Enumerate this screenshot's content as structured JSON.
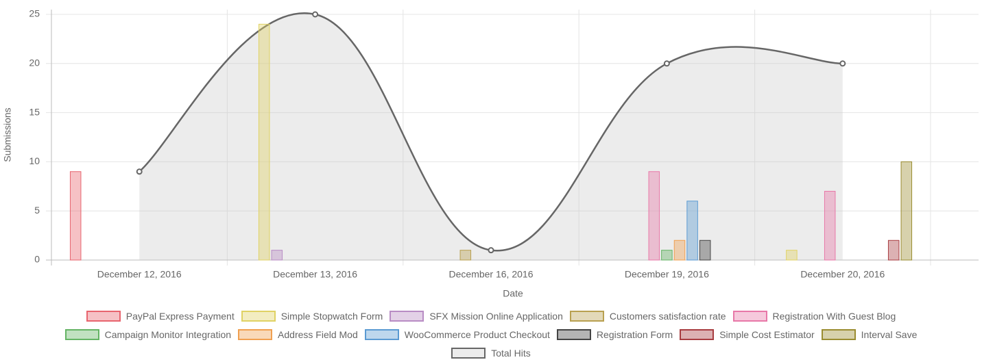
{
  "chart_data": {
    "type": "bar",
    "x_label": "Date",
    "y_label": "Submissions",
    "categories": [
      "December 12, 2016",
      "December 13, 2016",
      "December 16, 2016",
      "December 19, 2016",
      "December 20, 2016"
    ],
    "ylim": [
      0,
      25
    ],
    "yticks": [
      0,
      5,
      10,
      15,
      20,
      25
    ],
    "grid": true,
    "series": [
      {
        "name": "PayPal Express Payment",
        "color": "#e8646e",
        "values": [
          9,
          0,
          0,
          0,
          0
        ]
      },
      {
        "name": "Simple Stopwatch Form",
        "color": "#e0d264",
        "values": [
          0,
          24,
          0,
          0,
          1
        ]
      },
      {
        "name": "SFX Mission Online Application",
        "color": "#b88cc4",
        "values": [
          0,
          1,
          0,
          0,
          0
        ]
      },
      {
        "name": "Customers satisfaction rate",
        "color": "#b8a050",
        "values": [
          0,
          0,
          1,
          0,
          0
        ]
      },
      {
        "name": "Registration With Guest Blog",
        "color": "#e878a8",
        "values": [
          0,
          0,
          0,
          9,
          7
        ]
      },
      {
        "name": "Campaign Monitor Integration",
        "color": "#64b464",
        "values": [
          0,
          0,
          0,
          1,
          0
        ]
      },
      {
        "name": "Address Field Mod",
        "color": "#f0a050",
        "values": [
          0,
          0,
          0,
          2,
          0
        ]
      },
      {
        "name": "WooCommerce Product Checkout",
        "color": "#5a9ad2",
        "values": [
          0,
          0,
          0,
          6,
          0
        ]
      },
      {
        "name": "Registration Form",
        "color": "#444444",
        "values": [
          0,
          0,
          0,
          2,
          0
        ]
      },
      {
        "name": "Simple Cost Estimator",
        "color": "#a83c40",
        "values": [
          0,
          0,
          0,
          0,
          2
        ]
      },
      {
        "name": "Interval Save",
        "color": "#9a8c30",
        "values": [
          0,
          0,
          0,
          0,
          10
        ]
      },
      {
        "name": "Total Hits",
        "type": "line",
        "color": "#666666",
        "values": [
          9,
          25,
          1,
          20,
          20
        ]
      }
    ]
  }
}
